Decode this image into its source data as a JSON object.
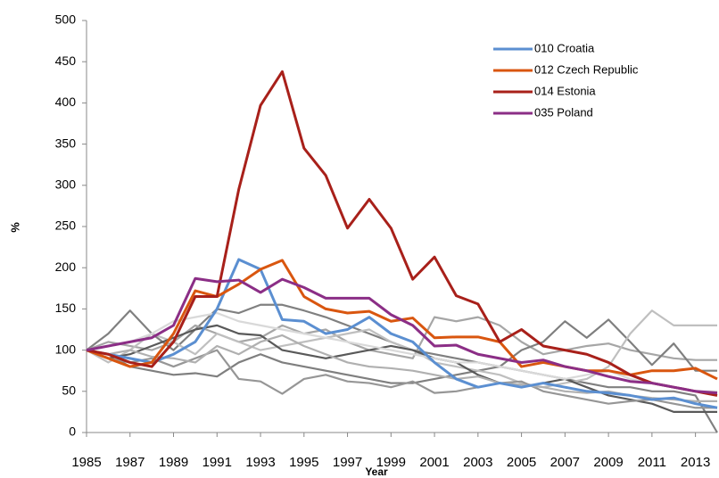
{
  "chart_data": {
    "type": "line",
    "xlabel": "Year",
    "ylabel": "%",
    "x": [
      1985,
      1986,
      1987,
      1988,
      1989,
      1990,
      1991,
      1992,
      1993,
      1994,
      1995,
      1996,
      1997,
      1998,
      1999,
      2000,
      2001,
      2002,
      2003,
      2004,
      2005,
      2006,
      2007,
      2008,
      2009,
      2010,
      2011,
      2012,
      2013,
      2014
    ],
    "xlim": [
      1985,
      2014
    ],
    "xticks": [
      1985,
      1987,
      1989,
      1991,
      1993,
      1995,
      1997,
      1999,
      2001,
      2003,
      2005,
      2007,
      2009,
      2011,
      2013
    ],
    "ylim": [
      0,
      500
    ],
    "yticks": [
      0,
      50,
      100,
      150,
      200,
      250,
      300,
      350,
      400,
      450,
      500
    ],
    "grid": false,
    "legend": "top-right",
    "series": [
      {
        "color": "#808080",
        "values": [
          100,
          120,
          148,
          120,
          100,
          125,
          150,
          145,
          155,
          155,
          148,
          140,
          130,
          120,
          110,
          100,
          95,
          90,
          85,
          80,
          75,
          70,
          65,
          60,
          55,
          55,
          50,
          50,
          45,
          0
        ]
      },
      {
        "color": "#a6a6a6",
        "values": [
          100,
          110,
          105,
          100,
          110,
          130,
          120,
          110,
          115,
          130,
          120,
          125,
          110,
          100,
          95,
          90,
          140,
          135,
          140,
          130,
          110,
          95,
          100,
          105,
          108,
          100,
          95,
          90,
          88,
          88
        ]
      },
      {
        "color": "#7f7f7f",
        "values": [
          100,
          95,
          80,
          75,
          70,
          72,
          68,
          85,
          95,
          85,
          80,
          75,
          70,
          65,
          60,
          60,
          65,
          70,
          75,
          80,
          100,
          110,
          135,
          115,
          137,
          110,
          82,
          108,
          75,
          75
        ]
      },
      {
        "color": "#bfbfbf",
        "values": [
          100,
          85,
          100,
          120,
          110,
          95,
          120,
          110,
          100,
          105,
          110,
          115,
          120,
          125,
          110,
          100,
          85,
          80,
          75,
          70,
          60,
          55,
          60,
          65,
          80,
          120,
          148,
          130,
          130,
          130
        ]
      },
      {
        "color": "#595959",
        "values": [
          100,
          90,
          95,
          105,
          115,
          125,
          130,
          120,
          118,
          100,
          95,
          90,
          95,
          100,
          105,
          100,
          90,
          85,
          70,
          60,
          55,
          60,
          65,
          55,
          45,
          40,
          35,
          25,
          25,
          25
        ]
      },
      {
        "color": "#d9d9d9",
        "values": [
          100,
          105,
          110,
          120,
          135,
          140,
          145,
          135,
          130,
          125,
          120,
          115,
          110,
          105,
          100,
          95,
          90,
          85,
          85,
          80,
          75,
          70,
          65,
          70,
          75,
          65,
          60,
          55,
          50,
          50
        ]
      },
      {
        "color": "#969696",
        "values": [
          100,
          90,
          85,
          90,
          80,
          90,
          100,
          65,
          62,
          47,
          65,
          70,
          62,
          60,
          55,
          62,
          48,
          50,
          55,
          60,
          62,
          50,
          45,
          40,
          35,
          38,
          40,
          35,
          30,
          30
        ]
      },
      {
        "color": "#b0b0b0",
        "values": [
          100,
          95,
          100,
          92,
          90,
          85,
          105,
          95,
          110,
          118,
          105,
          95,
          85,
          80,
          78,
          75,
          70,
          65,
          68,
          60,
          58,
          55,
          50,
          48,
          50,
          45,
          42,
          40,
          38,
          38
        ]
      },
      {
        "name": "010 Croatia",
        "color": "#5b8fd1",
        "values": [
          100,
          95,
          90,
          85,
          95,
          110,
          150,
          210,
          198,
          137,
          135,
          120,
          125,
          140,
          120,
          110,
          85,
          65,
          55,
          60,
          55,
          60,
          55,
          50,
          48,
          45,
          40,
          42,
          35,
          30
        ]
      },
      {
        "name": "012 Czech Republic",
        "color": "#d9560f",
        "values": [
          100,
          90,
          80,
          85,
          120,
          172,
          165,
          180,
          198,
          209,
          165,
          150,
          145,
          147,
          135,
          139,
          115,
          116,
          116,
          110,
          80,
          85,
          80,
          75,
          75,
          70,
          75,
          75,
          78,
          65
        ]
      },
      {
        "name": "014 Estonia",
        "color": "#a8201a",
        "values": [
          100,
          95,
          85,
          80,
          110,
          165,
          165,
          295,
          397,
          438,
          345,
          312,
          248,
          283,
          248,
          186,
          213,
          166,
          156,
          110,
          125,
          105,
          100,
          95,
          85,
          70,
          60,
          55,
          50,
          45
        ]
      },
      {
        "name": "035 Poland",
        "color": "#8b2e86",
        "values": [
          100,
          105,
          110,
          115,
          130,
          187,
          183,
          185,
          170,
          186,
          176,
          163,
          163,
          163,
          143,
          130,
          105,
          106,
          95,
          90,
          85,
          88,
          80,
          75,
          68,
          62,
          60,
          55,
          50,
          48
        ]
      }
    ]
  }
}
